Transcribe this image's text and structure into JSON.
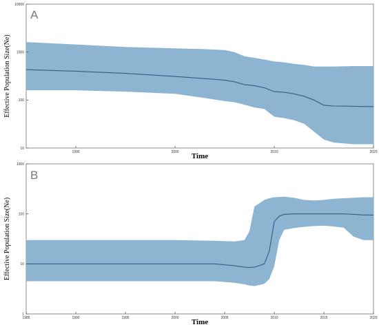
{
  "chart_data": [
    {
      "panel_label": "A",
      "type": "area",
      "xlabel": "Time",
      "ylabel": "Effective Population Size(Ne)",
      "xlim": [
        1985,
        2020
      ],
      "ylim": [
        10,
        10000
      ],
      "y_scale": "log",
      "x_ticks": [
        1990,
        2000,
        2010,
        2020
      ],
      "y_ticks": [
        {
          "value": 10,
          "label": "10"
        },
        {
          "value": 100,
          "label": "100"
        },
        {
          "value": 1000,
          "label": "1000"
        },
        {
          "value": 10000,
          "label": "10000"
        }
      ],
      "grid": false,
      "fill_color": "#8db4d0",
      "line_color": "#2e5d86",
      "x": [
        1985,
        1990,
        1995,
        2000,
        2003,
        2005,
        2006,
        2007,
        2008,
        2009,
        2010,
        2011,
        2012,
        2013,
        2014,
        2015,
        2016,
        2018,
        2020
      ],
      "median": [
        430,
        400,
        360,
        310,
        280,
        260,
        240,
        210,
        200,
        180,
        150,
        145,
        135,
        120,
        100,
        78,
        75,
        74,
        73
      ],
      "upper": [
        1620,
        1440,
        1280,
        1200,
        1150,
        1100,
        1000,
        820,
        760,
        700,
        640,
        610,
        570,
        540,
        500,
        500,
        500,
        510,
        510
      ],
      "lower": [
        160,
        160,
        150,
        135,
        110,
        95,
        90,
        80,
        70,
        65,
        45,
        42,
        38,
        32,
        22,
        15,
        13,
        12,
        12
      ]
    },
    {
      "panel_label": "B",
      "type": "area",
      "xlabel": "Time",
      "ylabel": "Effective Population Size(Ne)",
      "xlim": [
        1985,
        2020
      ],
      "ylim": [
        1,
        1000
      ],
      "y_scale": "log",
      "x_ticks": [
        1985,
        1990,
        1995,
        2000,
        2005,
        2010,
        2015,
        2020
      ],
      "y_ticks": [
        {
          "value": 1,
          "label": "1"
        },
        {
          "value": 10,
          "label": "10"
        },
        {
          "value": 100,
          "label": "100"
        },
        {
          "value": 1000,
          "label": "1000"
        }
      ],
      "grid": false,
      "fill_color": "#8db4d0",
      "line_color": "#2e5d86",
      "x": [
        1985,
        1990,
        2000,
        2004,
        2006,
        2007,
        2007.5,
        2008,
        2009,
        2009.5,
        2010,
        2010.5,
        2011,
        2012,
        2013,
        2014,
        2015,
        2016,
        2017,
        2018,
        2019,
        2020
      ],
      "median": [
        10,
        10,
        10,
        10,
        9.2,
        8.6,
        8.5,
        8.6,
        10,
        18,
        70,
        90,
        98,
        100,
        100,
        100,
        100,
        100,
        100,
        98,
        95,
        95
      ],
      "upper": [
        30,
        30,
        30,
        29,
        28,
        30,
        45,
        140,
        190,
        205,
        215,
        218,
        220,
        210,
        190,
        185,
        190,
        200,
        205,
        210,
        215,
        215
      ],
      "lower": [
        4.5,
        4.5,
        4.5,
        4.5,
        4.2,
        3.9,
        3.7,
        3.6,
        4.0,
        5.0,
        9.0,
        30,
        48,
        52,
        55,
        57,
        58,
        56,
        53,
        35,
        30,
        30
      ]
    }
  ]
}
